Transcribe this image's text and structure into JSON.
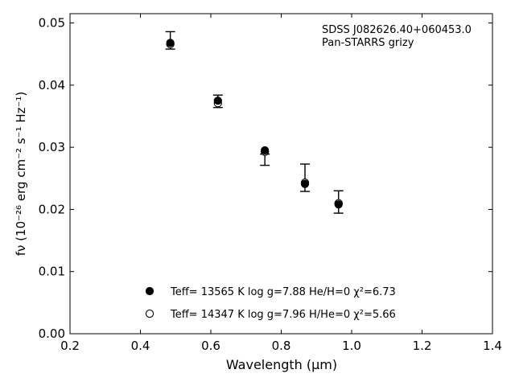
{
  "chart_data": {
    "type": "scatter",
    "xlabel": "Wavelength (μm)",
    "ylabel": "fν (10⁻²⁶ erg cm⁻² s⁻¹ Hz⁻¹)",
    "xlim": [
      0.2,
      1.4
    ],
    "ylim": [
      0.0,
      0.0515
    ],
    "xticks": [
      "0.2",
      "0.4",
      "0.6",
      "0.8",
      "1.0",
      "1.2",
      "1.4"
    ],
    "xtick_values": [
      0.2,
      0.4,
      0.6,
      0.8,
      1.0,
      1.2,
      1.4
    ],
    "yticks": [
      "0.00",
      "0.01",
      "0.02",
      "0.03",
      "0.04",
      "0.05"
    ],
    "ytick_values": [
      0.0,
      0.01,
      0.02,
      0.03,
      0.04,
      0.05
    ],
    "grid": false,
    "annotation": [
      "SDSS J082626.40+060453.0",
      "Pan-STARRS grizy"
    ],
    "observed": {
      "x": [
        0.4849,
        0.6201,
        0.7535,
        0.8674,
        0.9628
      ],
      "y": [
        0.0472,
        0.0374,
        0.028,
        0.0251,
        0.0212
      ],
      "yerr": [
        0.0014,
        0.001,
        0.0009,
        0.0022,
        0.0018
      ]
    },
    "series": [
      {
        "name": "Teff= 13565 K  log g=7.88  He/H=0  χ²=6.73",
        "marker": "filled-circle",
        "x": [
          0.4849,
          0.6201,
          0.7535,
          0.8674,
          0.9628
        ],
        "y": [
          0.0468,
          0.0375,
          0.0295,
          0.0241,
          0.0208
        ]
      },
      {
        "name": "Teff= 14347 K  log g=7.96  H/He=0  χ²=5.66",
        "marker": "open-circle",
        "x": [
          0.4849,
          0.6201,
          0.7535,
          0.8674,
          0.9628
        ],
        "y": [
          0.0466,
          0.0371,
          0.0293,
          0.0243,
          0.021
        ]
      }
    ],
    "legend_placement": "bottom-center"
  }
}
